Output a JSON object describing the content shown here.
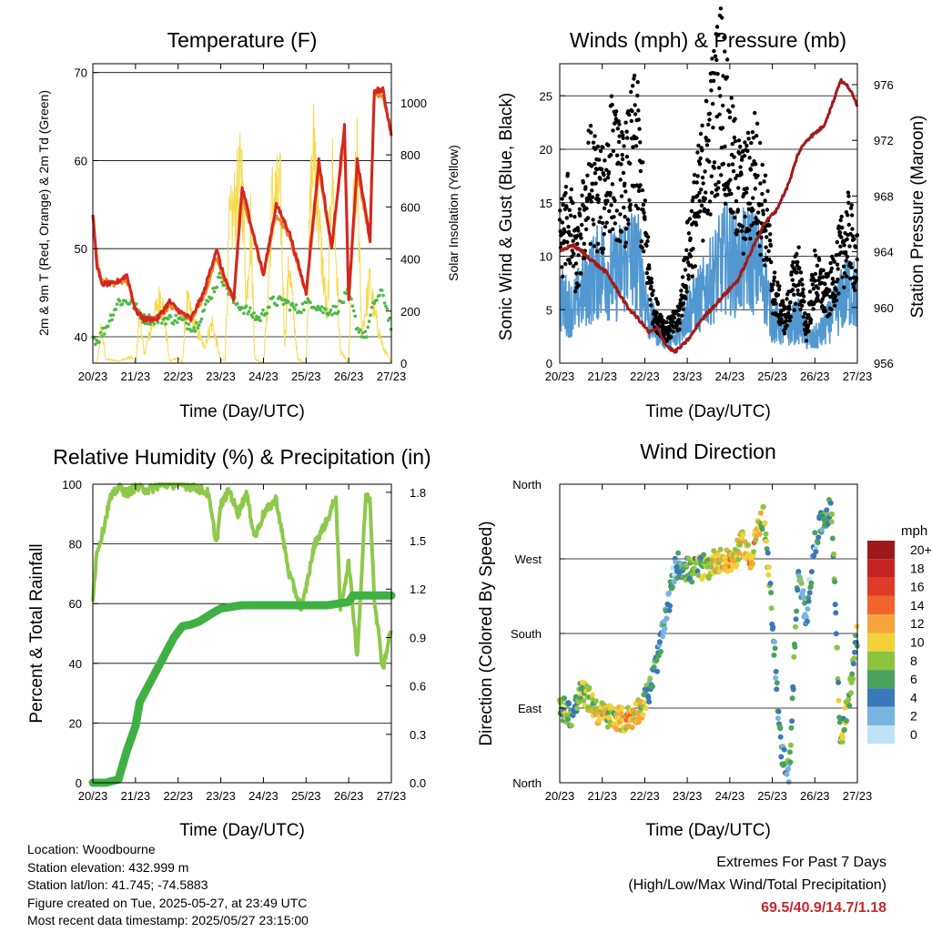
{
  "colors": {
    "temp_red": "#d42620",
    "temp_orange": "#f08a24",
    "dewpoint_green": "#4fb848",
    "solar_yellow": "#f7d94c",
    "wind_blue": "#5298d0",
    "gust_black": "#000000",
    "pressure_maroon": "#a21a1a",
    "rh_lightgreen": "#8dc94a",
    "precip_green": "#3fb043",
    "extremes_red": "#c8262a"
  },
  "time_ticks": [
    "20/23",
    "21/23",
    "22/23",
    "23/23",
    "24/23",
    "25/23",
    "26/23",
    "27/23"
  ],
  "wind_legend": {
    "title": "mph",
    "labels": [
      "20+",
      "18",
      "16",
      "14",
      "12",
      "10",
      "8",
      "6",
      "4",
      "2",
      "0"
    ],
    "colors": [
      "#9e1a1a",
      "#c62324",
      "#e03b28",
      "#f0642d",
      "#f7a43a",
      "#f2d13a",
      "#8cc43f",
      "#4aa35c",
      "#3b78b8",
      "#79b3e0",
      "#bfe3f5"
    ]
  },
  "info": {
    "location": "Location: Woodbourne",
    "elevation": "Station elevation: 432.999 m",
    "latlon": "Station lat/lon: 41.745; -74.5883",
    "created": "Figure created on Tue, 2025-05-27, at 23:49 UTC",
    "recent": "Most recent data timestamp: 2025/05/27 23:15:00"
  },
  "extremes": {
    "title": "Extremes For Past 7 Days",
    "subtitle": "(High/Low/Max Wind/Total Precipitation)",
    "values": "69.5/40.9/14.7/1.18"
  },
  "chart_data": [
    {
      "type": "line",
      "title": "Temperature (F)",
      "xlabel": "Time (Day/UTC)",
      "ylabel": "2m & 9m T (Red, Orange) & 2m Td (Green)",
      "y2label": "Solar Insolation (Yellow)",
      "x_range": [
        0,
        7
      ],
      "ylim": [
        37,
        71
      ],
      "y_ticks": [
        40,
        50,
        60,
        70
      ],
      "y2lim": [
        0,
        1150
      ],
      "y2_ticks": [
        0,
        200,
        400,
        600,
        800,
        1000
      ],
      "grid": true,
      "series": [
        {
          "name": "2m T",
          "x": [
            0,
            0.1,
            0.2,
            0.5,
            0.8,
            1.0,
            1.2,
            1.5,
            1.8,
            2.0,
            2.3,
            2.6,
            2.9,
            3.0,
            3.3,
            3.5,
            3.7,
            4.0,
            4.3,
            4.6,
            5.0,
            5.3,
            5.6,
            5.9,
            6.0,
            6.2,
            6.5,
            6.6,
            6.8,
            7.0
          ],
          "y": [
            54,
            48,
            46,
            46,
            47,
            43,
            42,
            42,
            44,
            43,
            42,
            45,
            50,
            48,
            44,
            57,
            53,
            47,
            55,
            52,
            45,
            60,
            50,
            64,
            44,
            60,
            51,
            68,
            68,
            63
          ]
        },
        {
          "name": "9m T",
          "x": [
            0,
            0.1,
            0.2,
            0.5,
            0.8,
            1.0,
            1.2,
            1.5,
            1.8,
            2.0,
            2.3,
            2.6,
            2.9,
            3.0,
            3.3,
            3.5,
            3.7,
            4.0,
            4.3,
            4.6,
            5.0,
            5.3,
            5.6,
            5.9,
            6.0,
            6.2,
            6.5,
            6.6,
            6.8,
            7.0
          ],
          "y": [
            53.5,
            48.5,
            46.5,
            46,
            46.5,
            43,
            42,
            42,
            43.5,
            43,
            42,
            44.5,
            49,
            47.5,
            44,
            56,
            52.5,
            47,
            54,
            51.5,
            45,
            59,
            50,
            63,
            44.5,
            59,
            51,
            67.5,
            67.5,
            63
          ]
        },
        {
          "name": "2m Td",
          "x": [
            0,
            0.1,
            0.3,
            0.6,
            0.9,
            1.2,
            1.5,
            2.0,
            2.4,
            2.7,
            3.0,
            3.3,
            3.6,
            3.9,
            4.2,
            4.5,
            4.8,
            5.1,
            5.4,
            5.7,
            6.0,
            6.2,
            6.4,
            6.6,
            6.8,
            7.0
          ],
          "y": [
            40,
            39.5,
            41,
            44,
            44,
            42,
            42,
            42,
            41,
            44,
            47,
            44,
            43,
            42,
            44,
            44,
            43,
            44,
            43,
            43,
            45,
            41,
            40,
            44,
            45,
            41
          ]
        },
        {
          "name": "Solar Insolation",
          "x": [
            0.1,
            0.2,
            0.3,
            0.6,
            0.9,
            1.0,
            1.1,
            1.2,
            1.6,
            1.8,
            2.0,
            2.1,
            2.2,
            2.6,
            2.8,
            3.0,
            3.1,
            3.2,
            3.5,
            3.6,
            3.7,
            3.8,
            4.0,
            4.1,
            4.2,
            4.4,
            4.5,
            4.6,
            4.8,
            5.0,
            5.1,
            5.2,
            5.3,
            5.5,
            5.6,
            5.8,
            6.0,
            6.1,
            6.2,
            6.3,
            6.5,
            6.6,
            6.8,
            7.0
          ],
          "y": [
            0,
            180,
            20,
            10,
            30,
            0,
            250,
            40,
            350,
            10,
            30,
            0,
            300,
            80,
            200,
            10,
            20,
            650,
            940,
            300,
            700,
            20,
            0,
            300,
            800,
            820,
            100,
            500,
            20,
            0,
            800,
            1100,
            700,
            200,
            1000,
            60,
            0,
            700,
            950,
            150,
            400,
            250,
            80,
            0
          ]
        }
      ]
    },
    {
      "type": "scatter",
      "title": "Winds (mph) & Pressure (mb)",
      "xlabel": "Time (Day/UTC)",
      "ylabel": "Sonic Wind & Gust (Blue, Black)",
      "y2label": "Station Pressure (Maroon)",
      "x_range": [
        0,
        7
      ],
      "ylim": [
        0,
        28
      ],
      "y_ticks": [
        0,
        5,
        10,
        15,
        20,
        25
      ],
      "y2lim": [
        956,
        977.5
      ],
      "y2_ticks": [
        956,
        960,
        964,
        968,
        972,
        976
      ],
      "grid": true,
      "series": [
        {
          "name": "Sonic Wind",
          "x": [
            0,
            0.3,
            0.6,
            1.0,
            1.3,
            1.6,
            1.9,
            2.1,
            2.4,
            2.7,
            3.0,
            3.3,
            3.6,
            3.9,
            4.2,
            4.5,
            4.8,
            5.0,
            5.3,
            5.6,
            5.9,
            6.2,
            6.5,
            6.8,
            7.0
          ],
          "y": [
            6,
            5,
            7,
            9,
            8,
            10,
            9,
            4,
            3,
            2,
            5,
            6,
            8,
            10,
            9,
            10,
            8,
            4,
            3,
            4,
            2,
            3,
            5,
            7,
            6
          ]
        },
        {
          "name": "Gust",
          "x": [
            0,
            0.2,
            0.4,
            0.7,
            1.0,
            1.2,
            1.5,
            1.8,
            2.0,
            2.2,
            2.5,
            2.8,
            3.0,
            3.2,
            3.5,
            3.8,
            4.0,
            4.3,
            4.6,
            4.9,
            5.0,
            5.3,
            5.6,
            5.8,
            6.0,
            6.3,
            6.6,
            6.8,
            7.0
          ],
          "y": [
            11,
            14,
            9,
            17,
            15,
            19,
            16,
            21,
            12,
            5,
            3,
            4,
            10,
            14,
            20,
            26,
            19,
            15,
            18,
            12,
            7,
            4,
            9,
            3,
            8,
            6,
            10,
            12,
            9
          ]
        },
        {
          "name": "Station Pressure",
          "x": [
            0,
            0.3,
            0.6,
            0.9,
            1.1,
            1.3,
            1.6,
            1.9,
            2.1,
            2.3,
            2.5,
            2.7,
            2.9,
            3.1,
            3.3,
            3.6,
            3.9,
            4.2,
            4.5,
            4.8,
            5.1,
            5.4,
            5.6,
            5.8,
            6.0,
            6.2,
            6.4,
            6.6,
            6.8,
            7.0
          ],
          "y": [
            964,
            964.5,
            963.8,
            963,
            962.5,
            961.5,
            960,
            959,
            958.2,
            958.5,
            957.3,
            956.8,
            957.3,
            958,
            959,
            960,
            961,
            962,
            964,
            966,
            967,
            969,
            971,
            972,
            972.5,
            973,
            974.5,
            976.3,
            975.8,
            974.5
          ]
        }
      ]
    },
    {
      "type": "line",
      "title": "Relative Humidity (%) & Precipitation (in)",
      "xlabel": "Time (Day/UTC)",
      "ylabel": "Percent & Total Rainfall",
      "x_range": [
        0,
        7
      ],
      "ylim": [
        0,
        100
      ],
      "y_ticks": [
        0,
        20,
        40,
        60,
        80,
        100
      ],
      "y2lim": [
        0,
        1.85
      ],
      "y2_ticks": [
        "0.0",
        "0.3",
        "0.6",
        "0.9",
        "1.2",
        "1.5",
        "1.8"
      ],
      "grid": true,
      "series": [
        {
          "name": "Relative Humidity",
          "x": [
            0,
            0.1,
            0.2,
            0.4,
            0.6,
            0.8,
            1.0,
            1.3,
            1.6,
            2.0,
            2.4,
            2.7,
            2.9,
            3.0,
            3.2,
            3.4,
            3.6,
            3.8,
            4.0,
            4.3,
            4.6,
            4.9,
            5.2,
            5.5,
            5.7,
            5.8,
            6.0,
            6.2,
            6.4,
            6.5,
            6.6,
            6.8,
            7.0
          ],
          "y": [
            62,
            78,
            82,
            95,
            99,
            97,
            99,
            98,
            100,
            100,
            99,
            97,
            80,
            93,
            98,
            90,
            97,
            82,
            90,
            95,
            70,
            58,
            80,
            88,
            96,
            58,
            74,
            42,
            96,
            95,
            62,
            38,
            52
          ]
        },
        {
          "name": "Total Precipitation",
          "x": [
            0,
            0.3,
            0.6,
            0.8,
            1.0,
            1.1,
            1.3,
            1.5,
            1.7,
            1.9,
            2.1,
            2.3,
            2.5,
            2.8,
            3.0,
            3.5,
            4.0,
            4.5,
            5.0,
            5.5,
            6.0,
            6.1,
            6.5,
            7.0
          ],
          "y": [
            0,
            0,
            0.02,
            0.2,
            0.35,
            0.5,
            0.6,
            0.7,
            0.8,
            0.9,
            0.97,
            0.98,
            1.0,
            1.05,
            1.08,
            1.1,
            1.1,
            1.1,
            1.1,
            1.1,
            1.12,
            1.16,
            1.16,
            1.16
          ]
        }
      ]
    },
    {
      "type": "scatter",
      "title": "Wind Direction",
      "xlabel": "Time (Day/UTC)",
      "ylabel": "Direction (Colored By Speed)",
      "x_range": [
        0,
        7
      ],
      "ylim": [
        0,
        360
      ],
      "y_ticks": [
        "North",
        "East",
        "South",
        "West",
        "North"
      ],
      "grid": true,
      "series": [
        {
          "name": "Wind Direction",
          "x": [
            0.1,
            0.3,
            0.5,
            0.7,
            0.9,
            1.1,
            1.3,
            1.5,
            1.7,
            1.9,
            2.1,
            2.3,
            2.5,
            2.7,
            2.8,
            2.9,
            3.1,
            3.3,
            3.5,
            3.7,
            3.9,
            4.1,
            4.3,
            4.5,
            4.6,
            4.8,
            5.0,
            5.2,
            5.4,
            5.6,
            5.8,
            6.0,
            6.2,
            6.4,
            6.6,
            6.8,
            7.0
          ],
          "y": [
            90,
            80,
            110,
            100,
            85,
            80,
            80,
            75,
            80,
            90,
            110,
            150,
            200,
            255,
            265,
            260,
            255,
            260,
            260,
            270,
            265,
            270,
            290,
            265,
            300,
            320,
            200,
            40,
            10,
            250,
            200,
            290,
            320,
            330,
            50,
            100,
            180
          ]
        }
      ]
    }
  ]
}
